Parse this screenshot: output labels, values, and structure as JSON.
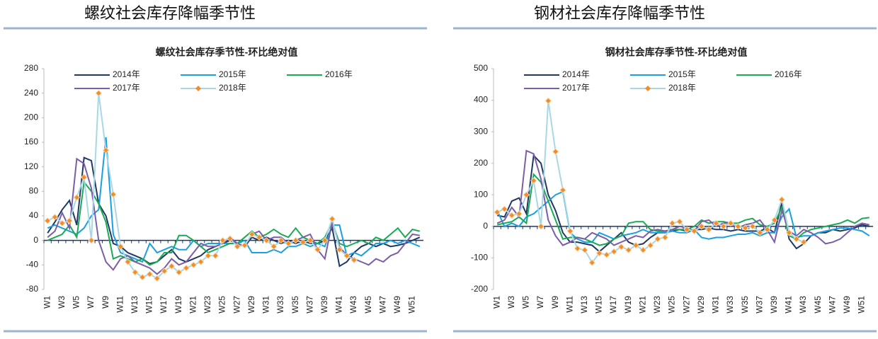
{
  "chart_data": [
    {
      "type": "line",
      "heading": "螺纹社会库存降幅季节性",
      "title": "螺纹社会库存季节性-环比绝对值",
      "categories": [
        "W1",
        null,
        "W3",
        null,
        "W5",
        null,
        "W7",
        null,
        "W9",
        null,
        "W11",
        null,
        "W13",
        null,
        "W15",
        null,
        "W17",
        null,
        "W19",
        null,
        "W21",
        null,
        "W23",
        null,
        "W25",
        null,
        "W27",
        null,
        "W29",
        null,
        "W31",
        null,
        "W33",
        null,
        "W35",
        null,
        "W37",
        null,
        "W39",
        null,
        "W41",
        null,
        "W43",
        null,
        "W45",
        null,
        "W47",
        null,
        "W49",
        null,
        "W51",
        null
      ],
      "ylim": [
        -80,
        280
      ],
      "yticks": [
        -80,
        -40,
        0,
        40,
        80,
        120,
        160,
        200,
        240,
        280
      ],
      "series": [
        {
          "name": "2014年",
          "color": "#1f3864",
          "values": [
            12,
            30,
            50,
            65,
            25,
            135,
            130,
            60,
            40,
            -5,
            -10,
            -20,
            -25,
            -30,
            -38,
            -35,
            -25,
            -15,
            -30,
            -35,
            -30,
            -25,
            -15,
            -10,
            -5,
            0,
            -5,
            -10,
            5,
            0,
            5,
            0,
            -5,
            0,
            -5,
            0,
            -5,
            -5,
            0,
            20,
            -42,
            -35,
            -20,
            -10,
            -5,
            -10,
            -5,
            -10,
            -8,
            -5,
            0,
            5
          ]
        },
        {
          "name": "2015年",
          "color": "#1aa0e0",
          "values": [
            20,
            25,
            20,
            15,
            10,
            20,
            40,
            50,
            168,
            10,
            -20,
            -25,
            -30,
            -35,
            -5,
            -20,
            -15,
            -10,
            -15,
            -15,
            0,
            -10,
            -5,
            -5,
            -5,
            -5,
            -5,
            0,
            -20,
            -20,
            -20,
            -15,
            -20,
            -10,
            -10,
            -5,
            -10,
            -5,
            -10,
            25,
            25,
            -25,
            -20,
            -25,
            -15,
            -5,
            -5,
            0,
            -5,
            0,
            -5,
            -10
          ]
        },
        {
          "name": "2016年",
          "color": "#1aaa55",
          "values": [
            0,
            5,
            10,
            25,
            5,
            95,
            80,
            60,
            30,
            -30,
            -25,
            -30,
            -35,
            -30,
            -40,
            -35,
            -20,
            -20,
            8,
            8,
            0,
            -10,
            -20,
            -15,
            -10,
            -5,
            -5,
            5,
            15,
            5,
            10,
            18,
            10,
            5,
            20,
            5,
            0,
            -5,
            5,
            30,
            -5,
            -10,
            -5,
            0,
            -5,
            5,
            0,
            10,
            20,
            5,
            18,
            15
          ]
        },
        {
          "name": "2017年",
          "color": "#7b5ea7",
          "values": [
            5,
            15,
            45,
            20,
            133,
            125,
            85,
            0,
            -35,
            -48,
            -30,
            -25,
            -35,
            -40,
            -45,
            -55,
            -45,
            -30,
            -40,
            -35,
            -20,
            -5,
            -10,
            -10,
            -5,
            5,
            -5,
            -10,
            10,
            15,
            0,
            5,
            5,
            -5,
            0,
            5,
            10,
            -15,
            -30,
            30,
            -10,
            -25,
            -30,
            -35,
            -40,
            -30,
            -35,
            -25,
            -20,
            -5,
            10,
            8
          ]
        },
        {
          "name": "2018年",
          "color": "#a8d8e6",
          "marker_color": "#f28c28",
          "values": [
            32,
            38,
            28,
            32,
            70,
            103,
            0,
            240,
            147,
            75,
            -10,
            -35,
            -52,
            -60,
            -55,
            -62,
            -50,
            -42,
            -52,
            -45,
            -40,
            -35,
            -25,
            -25,
            0,
            3,
            -10,
            -8,
            10,
            5,
            0,
            -10,
            0,
            -5,
            0,
            -3,
            0,
            -15,
            0,
            35,
            -15,
            -25,
            -32,
            null,
            null,
            null,
            null,
            null,
            null,
            null,
            null,
            null
          ]
        }
      ]
    },
    {
      "type": "line",
      "heading": "钢材社会库存降幅季节性",
      "title": "钢材社会库存季节性-环比绝对值",
      "categories": [
        "W1",
        null,
        "W3",
        null,
        "W5",
        null,
        "W7",
        null,
        "W9",
        null,
        "W11",
        null,
        "W13",
        null,
        "W15",
        null,
        "W17",
        null,
        "W19",
        null,
        "W21",
        null,
        "W23",
        null,
        "W25",
        null,
        "W27",
        null,
        "W29",
        null,
        "W31",
        null,
        "W33",
        null,
        "W35",
        null,
        "W37",
        null,
        "W39",
        null,
        "W41",
        null,
        "W43",
        null,
        "W45",
        null,
        "W47",
        null,
        "W49",
        null,
        "W51",
        null
      ],
      "ylim": [
        -200,
        500
      ],
      "yticks": [
        -200,
        -100,
        0,
        100,
        200,
        300,
        400,
        500
      ],
      "series": [
        {
          "name": "2014年",
          "color": "#1f3864",
          "values": [
            35,
            30,
            80,
            90,
            40,
            225,
            200,
            100,
            50,
            -20,
            -50,
            -50,
            -55,
            -60,
            -80,
            -60,
            -40,
            -20,
            -50,
            -60,
            -55,
            -35,
            -20,
            -20,
            -15,
            -10,
            -15,
            -10,
            -10,
            -5,
            -10,
            -10,
            -15,
            -10,
            -15,
            -15,
            -15,
            -5,
            -20,
            75,
            -40,
            -70,
            -55,
            -30,
            -20,
            -20,
            -10,
            -15,
            -10,
            -5,
            5,
            0
          ]
        },
        {
          "name": "2015年",
          "color": "#1aa0e0",
          "values": [
            50,
            0,
            10,
            0,
            30,
            40,
            60,
            80,
            100,
            110,
            -20,
            -40,
            -50,
            -50,
            -20,
            -30,
            -40,
            -30,
            -25,
            -20,
            -10,
            -20,
            -20,
            -20,
            -15,
            -20,
            -20,
            -10,
            -35,
            -40,
            -35,
            -35,
            -30,
            -25,
            -25,
            -20,
            -30,
            -20,
            -20,
            30,
            55,
            -35,
            -30,
            -30,
            -20,
            -15,
            -10,
            -5,
            -5,
            -10,
            -15,
            -30
          ]
        },
        {
          "name": "2016年",
          "color": "#1aaa55",
          "values": [
            5,
            10,
            15,
            30,
            10,
            165,
            140,
            80,
            20,
            -40,
            -35,
            -35,
            -40,
            -50,
            -60,
            -55,
            -40,
            -30,
            10,
            15,
            15,
            -10,
            -15,
            -15,
            -10,
            -10,
            -10,
            0,
            20,
            10,
            15,
            15,
            10,
            10,
            20,
            25,
            5,
            0,
            10,
            60,
            -30,
            -40,
            -20,
            -10,
            -5,
            0,
            5,
            10,
            20,
            10,
            25,
            28
          ]
        },
        {
          "name": "2017年",
          "color": "#7b5ea7",
          "values": [
            10,
            20,
            60,
            30,
            240,
            230,
            150,
            20,
            -30,
            -60,
            -50,
            -35,
            -40,
            -20,
            -30,
            -40,
            -60,
            -50,
            -40,
            -30,
            -35,
            -15,
            -10,
            -15,
            -10,
            0,
            -5,
            -15,
            15,
            20,
            0,
            10,
            10,
            -5,
            5,
            10,
            20,
            -10,
            -50,
            50,
            -15,
            -30,
            -10,
            -20,
            -35,
            -55,
            -50,
            -40,
            -20,
            0,
            10,
            5
          ]
        },
        {
          "name": "2018年",
          "color": "#a8d8e6",
          "marker_color": "#f28c28",
          "values": [
            45,
            55,
            35,
            40,
            100,
            145,
            0,
            398,
            237,
            115,
            -15,
            -70,
            -75,
            -115,
            -85,
            -90,
            -80,
            -65,
            -75,
            -60,
            -75,
            -60,
            -40,
            -35,
            10,
            15,
            -10,
            -15,
            0,
            -10,
            10,
            0,
            10,
            0,
            -5,
            0,
            -20,
            -10,
            20,
            85,
            -20,
            -40,
            -50,
            null,
            null,
            null,
            null,
            null,
            null,
            null,
            null,
            null
          ]
        }
      ]
    }
  ]
}
